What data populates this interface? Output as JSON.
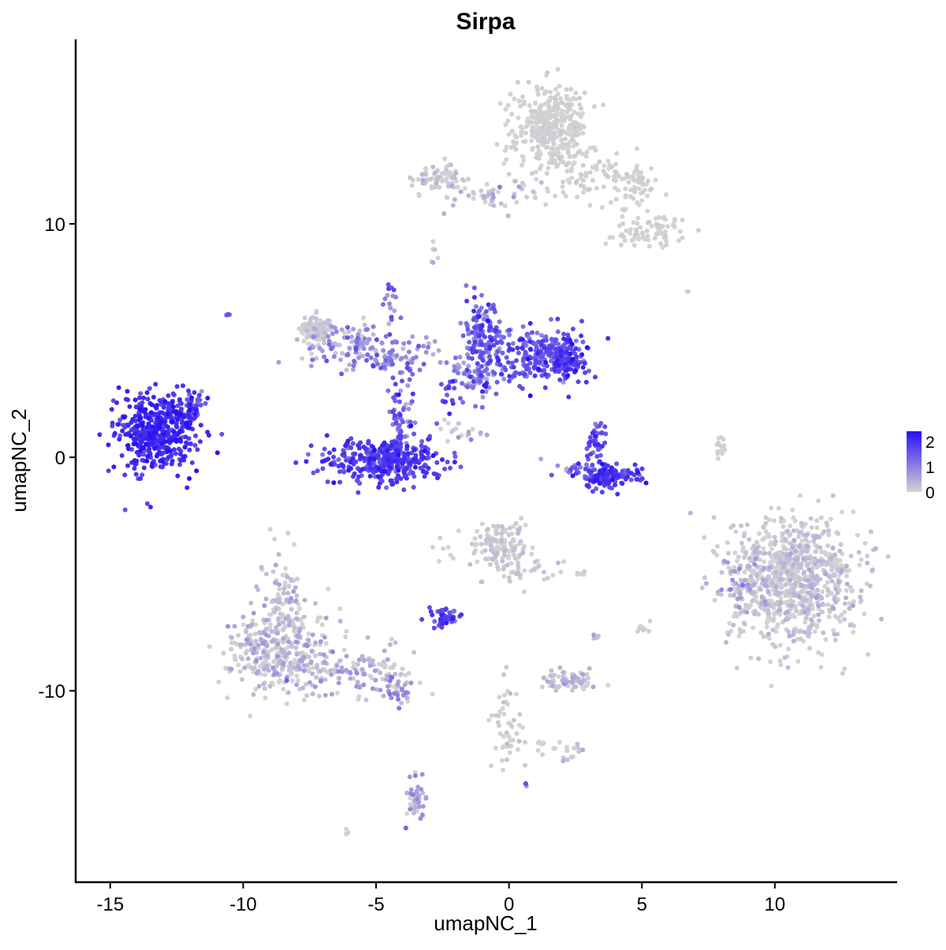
{
  "chart_data": {
    "type": "scatter",
    "title": "Sirpa",
    "xlabel": "umapNC_1",
    "ylabel": "umapNC_2",
    "xlim": [
      -16.3,
      14.6
    ],
    "ylim": [
      -18.2,
      17.9
    ],
    "x_ticks": [
      -15,
      -10,
      -5,
      0,
      5,
      10
    ],
    "x_tick_labels": [
      "-15",
      "-10",
      "-5",
      "0",
      "5",
      "10"
    ],
    "y_ticks": [
      -10,
      0,
      10
    ],
    "y_tick_labels": [
      "-10",
      "0",
      "10"
    ],
    "grid": false,
    "legend": {
      "position": "right",
      "title": "",
      "ticks": [
        2,
        1,
        0
      ],
      "tick_labels": [
        "2",
        "1",
        "0"
      ],
      "range": [
        0,
        2.4
      ]
    },
    "colors": {
      "low": "#d3d3d3",
      "high": "#2a10f5"
    },
    "clusters": [
      {
        "cx": -13.2,
        "cy": 1.1,
        "sx": 0.8,
        "sy": 0.8,
        "n": 460,
        "mean": 2.0,
        "sd": 0.25
      },
      {
        "cx": -11.9,
        "cy": 2.1,
        "sx": 0.3,
        "sy": 0.4,
        "n": 30,
        "mean": 1.5,
        "sd": 0.3
      },
      {
        "cx": -10.6,
        "cy": 6.1,
        "sx": 0.05,
        "sy": 0.05,
        "n": 3,
        "mean": 1.5,
        "sd": 0.2
      },
      {
        "cx": -4.7,
        "cy": -0.1,
        "sx": 1.2,
        "sy": 0.45,
        "n": 340,
        "mean": 1.8,
        "sd": 0.3
      },
      {
        "cx": -4.1,
        "cy": 1.5,
        "sx": 0.25,
        "sy": 0.9,
        "n": 70,
        "mean": 1.4,
        "sd": 0.4
      },
      {
        "cx": -7.3,
        "cy": 5.5,
        "sx": 0.3,
        "sy": 0.3,
        "n": 90,
        "mean": 0.05,
        "sd": 0.15
      },
      {
        "cx": -6.0,
        "cy": 4.9,
        "sx": 0.9,
        "sy": 0.45,
        "n": 90,
        "mean": 0.4,
        "sd": 0.4
      },
      {
        "cx": -4.4,
        "cy": 4.3,
        "sx": 1.0,
        "sy": 0.5,
        "n": 100,
        "mean": 1.0,
        "sd": 0.4
      },
      {
        "cx": -4.5,
        "cy": 6.7,
        "sx": 0.15,
        "sy": 0.4,
        "n": 15,
        "mean": 1.2,
        "sd": 0.4
      },
      {
        "cx": -0.9,
        "cy": 5.2,
        "sx": 0.35,
        "sy": 0.75,
        "n": 130,
        "mean": 1.4,
        "sd": 0.4
      },
      {
        "cx": 1.1,
        "cy": 4.4,
        "sx": 0.9,
        "sy": 0.55,
        "n": 210,
        "mean": 1.5,
        "sd": 0.4
      },
      {
        "cx": 2.1,
        "cy": 4.1,
        "sx": 0.45,
        "sy": 0.5,
        "n": 110,
        "mean": 1.8,
        "sd": 0.3
      },
      {
        "cx": -1.3,
        "cy": 3.4,
        "sx": 0.5,
        "sy": 0.5,
        "n": 70,
        "mean": 1.1,
        "sd": 0.5
      },
      {
        "cx": -2.3,
        "cy": 2.6,
        "sx": 0.12,
        "sy": 0.3,
        "n": 14,
        "mean": 1.8,
        "sd": 0.3
      },
      {
        "cx": -2.0,
        "cy": 1.3,
        "sx": 0.3,
        "sy": 0.3,
        "n": 10,
        "mean": 0.1,
        "sd": 0.2
      },
      {
        "cx": -1.3,
        "cy": 0.9,
        "sx": 0.3,
        "sy": 0.2,
        "n": 8,
        "mean": 0.5,
        "sd": 0.3
      },
      {
        "cx": 3.6,
        "cy": -0.8,
        "sx": 0.55,
        "sy": 0.25,
        "n": 150,
        "mean": 1.8,
        "sd": 0.3
      },
      {
        "cx": 3.3,
        "cy": 0.6,
        "sx": 0.2,
        "sy": 0.45,
        "n": 40,
        "mean": 1.6,
        "sd": 0.3
      },
      {
        "cx": 2.4,
        "cy": -0.4,
        "sx": 0.4,
        "sy": 0.2,
        "n": 20,
        "mean": 1.0,
        "sd": 0.4
      },
      {
        "cx": 7.9,
        "cy": 0.4,
        "sx": 0.1,
        "sy": 0.4,
        "n": 14,
        "mean": 0.0,
        "sd": 0.05
      },
      {
        "cx": 1.6,
        "cy": 14.1,
        "sx": 0.65,
        "sy": 0.85,
        "n": 360,
        "mean": 0.0,
        "sd": 0.05
      },
      {
        "cx": 3.0,
        "cy": 12.0,
        "sx": 1.2,
        "sy": 0.6,
        "n": 80,
        "mean": 0.02,
        "sd": 0.08
      },
      {
        "cx": 5.3,
        "cy": 9.6,
        "sx": 0.6,
        "sy": 0.35,
        "n": 80,
        "mean": 0.0,
        "sd": 0.05
      },
      {
        "cx": 4.8,
        "cy": 11.5,
        "sx": 0.4,
        "sy": 0.45,
        "n": 50,
        "mean": 0.0,
        "sd": 0.05
      },
      {
        "cx": -2.6,
        "cy": 11.9,
        "sx": 0.45,
        "sy": 0.3,
        "n": 70,
        "mean": 0.05,
        "sd": 0.15
      },
      {
        "cx": -0.8,
        "cy": 11.2,
        "sx": 1.3,
        "sy": 0.3,
        "n": 50,
        "mean": 0.1,
        "sd": 0.3
      },
      {
        "cx": -2.8,
        "cy": 8.7,
        "sx": 0.1,
        "sy": 0.2,
        "n": 6,
        "mean": 0.2,
        "sd": 0.2
      },
      {
        "cx": 10.7,
        "cy": -5.2,
        "sx": 1.2,
        "sy": 1.3,
        "n": 880,
        "mean": 0.05,
        "sd": 0.22
      },
      {
        "cx": 8.8,
        "cy": -5.6,
        "sx": 0.35,
        "sy": 0.8,
        "n": 50,
        "mean": 0.3,
        "sd": 0.35
      },
      {
        "cx": -0.4,
        "cy": -3.8,
        "sx": 0.6,
        "sy": 0.55,
        "n": 130,
        "mean": 0.05,
        "sd": 0.15
      },
      {
        "cx": 0.8,
        "cy": -4.8,
        "sx": 0.6,
        "sy": 0.4,
        "n": 30,
        "mean": 0.05,
        "sd": 0.15
      },
      {
        "cx": -2.4,
        "cy": -6.9,
        "sx": 0.3,
        "sy": 0.25,
        "n": 45,
        "mean": 1.7,
        "sd": 0.3
      },
      {
        "cx": -8.7,
        "cy": -8.4,
        "sx": 1.0,
        "sy": 0.9,
        "n": 330,
        "mean": 0.12,
        "sd": 0.35
      },
      {
        "cx": -8.4,
        "cy": -6.1,
        "sx": 0.5,
        "sy": 0.9,
        "n": 90,
        "mean": 0.1,
        "sd": 0.3
      },
      {
        "cx": -5.5,
        "cy": -9.2,
        "sx": 1.0,
        "sy": 0.45,
        "n": 110,
        "mean": 0.35,
        "sd": 0.4
      },
      {
        "cx": -4.3,
        "cy": -10.1,
        "sx": 0.35,
        "sy": 0.25,
        "n": 30,
        "mean": 0.6,
        "sd": 0.4
      },
      {
        "cx": 2.3,
        "cy": -9.6,
        "sx": 0.45,
        "sy": 0.2,
        "n": 70,
        "mean": 0.1,
        "sd": 0.3
      },
      {
        "cx": -0.1,
        "cy": -11.4,
        "sx": 0.35,
        "sy": 1.0,
        "n": 40,
        "mean": 0.05,
        "sd": 0.15
      },
      {
        "cx": 1.2,
        "cy": -12.4,
        "sx": 1.0,
        "sy": 0.2,
        "n": 18,
        "mean": 0.0,
        "sd": 0.05
      },
      {
        "cx": 2.4,
        "cy": -12.7,
        "sx": 0.2,
        "sy": 0.2,
        "n": 12,
        "mean": 0.1,
        "sd": 0.2
      },
      {
        "cx": -3.5,
        "cy": -14.6,
        "sx": 0.2,
        "sy": 0.5,
        "n": 40,
        "mean": 0.4,
        "sd": 0.4
      },
      {
        "cx": 5.0,
        "cy": -7.4,
        "sx": 0.15,
        "sy": 0.2,
        "n": 10,
        "mean": 0.0,
        "sd": 0.05
      },
      {
        "cx": 2.8,
        "cy": -5.0,
        "sx": 0.1,
        "sy": 0.1,
        "n": 5,
        "mean": 0.0,
        "sd": 0.05
      },
      {
        "cx": 3.3,
        "cy": -7.6,
        "sx": 0.1,
        "sy": 0.1,
        "n": 4,
        "mean": 0.6,
        "sd": 0.3
      },
      {
        "cx": -6.1,
        "cy": -16.0,
        "sx": 0.1,
        "sy": 0.1,
        "n": 3,
        "mean": 0.0,
        "sd": 0.05
      },
      {
        "cx": 0.6,
        "cy": -14.0,
        "sx": 0.05,
        "sy": 0.05,
        "n": 3,
        "mean": 1.0,
        "sd": 0.3
      },
      {
        "cx": -2.4,
        "cy": -4.1,
        "sx": 0.3,
        "sy": 0.2,
        "n": 6,
        "mean": 0.0,
        "sd": 0.05
      },
      {
        "cx": 6.8,
        "cy": 7.1,
        "sx": 0.05,
        "sy": 0.05,
        "n": 2,
        "mean": 0.0,
        "sd": 0.05
      }
    ]
  }
}
